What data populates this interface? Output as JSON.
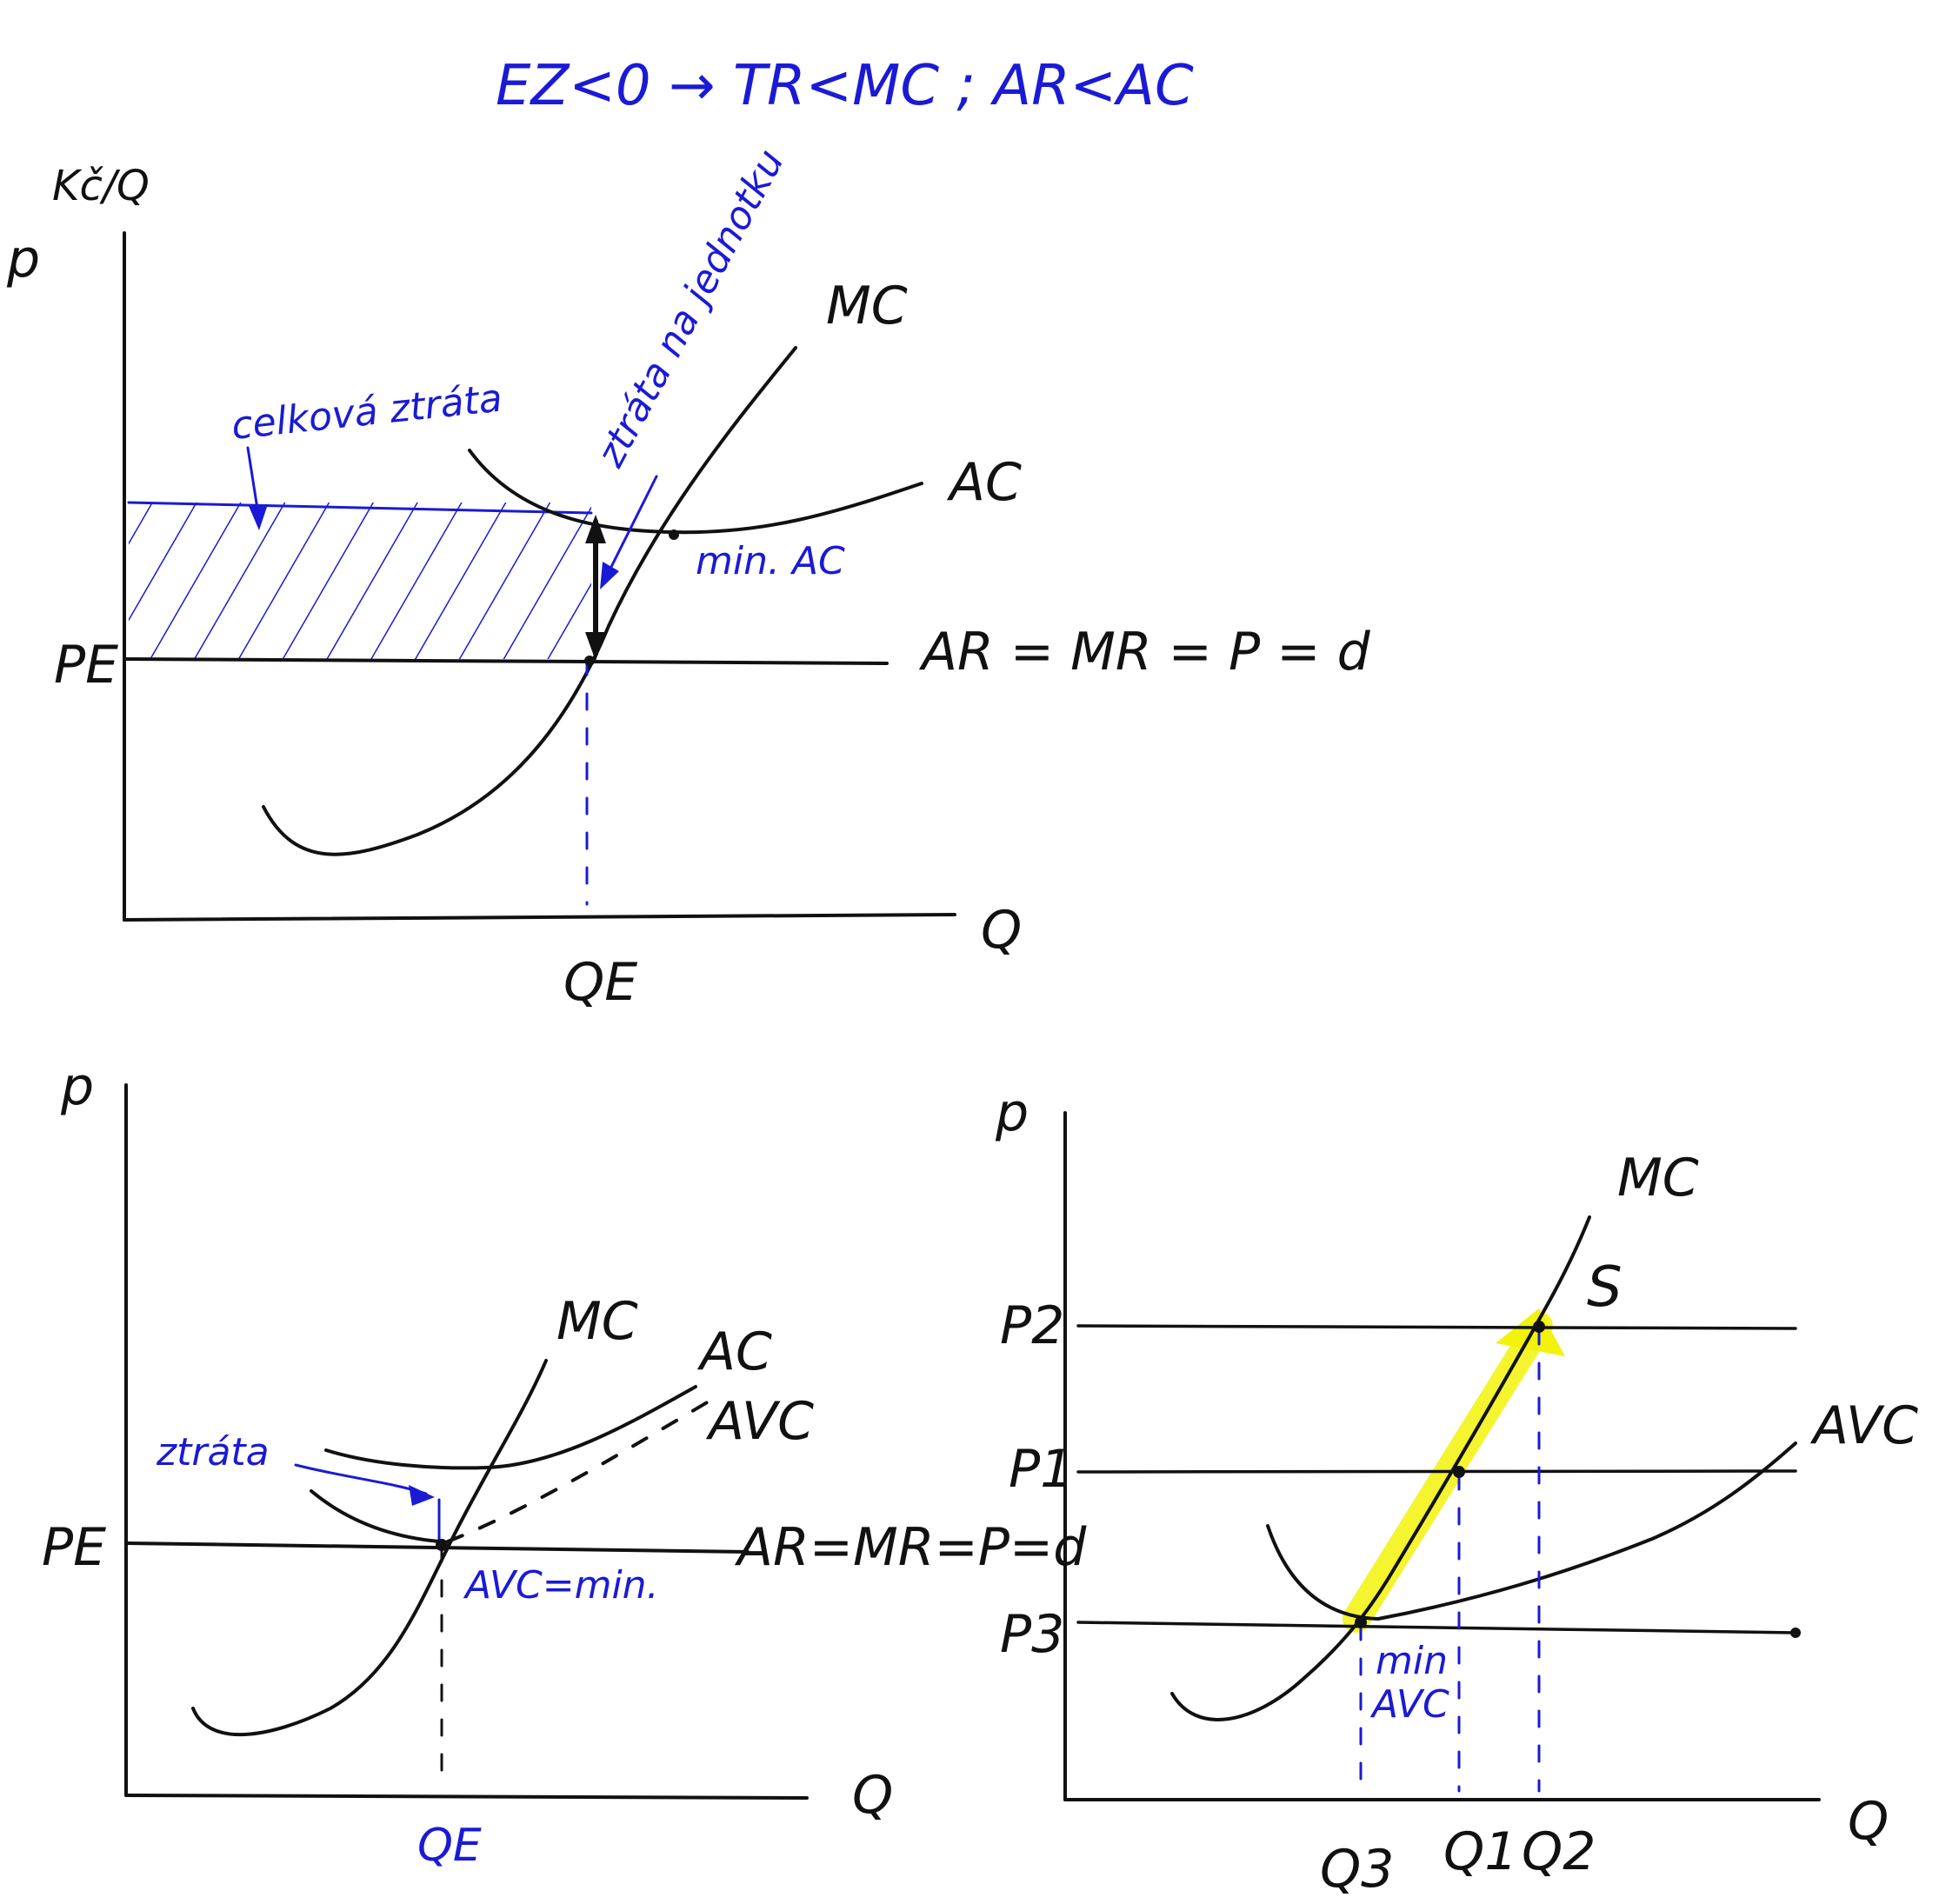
{
  "title": "EZ<0 → TR<MC ; AR<AC",
  "colors": {
    "ink": "#111111",
    "annotation": "#1a1ad6",
    "highlight": "#f2f20a"
  },
  "top_diagram": {
    "y_axis": "p",
    "y_axis_unit": "Kč/Q",
    "x_axis": "Q",
    "mc_label": "MC",
    "ac_label": "AC",
    "price_label": "PE",
    "quantity_label": "QE",
    "demand_label": "AR = MR = P = d",
    "total_loss_label": "celková ztráta",
    "unit_loss_label": "ztráta na jednotku",
    "min_ac_label": "min. AC"
  },
  "bottom_left_diagram": {
    "y_axis": "p",
    "x_axis": "Q",
    "mc_label": "MC",
    "ac_label": "AC",
    "avc_label": "AVC",
    "loss_label": "ztráta",
    "price_label": "PE",
    "quantity_label": "QE",
    "demand_label": "AR=MR=P=d",
    "avc_min_label": "AVC=min."
  },
  "bottom_right_diagram": {
    "y_axis": "p",
    "x_axis": "Q",
    "mc_label": "MC",
    "avc_label": "AVC",
    "supply_label": "S",
    "p2_label": "P2",
    "p1_label": "P1",
    "p3_label": "P3",
    "q3_label": "Q3",
    "q1_label": "Q1",
    "q2_label": "Q2",
    "min_avc_label_1": "min",
    "min_avc_label_2": "AVC"
  }
}
